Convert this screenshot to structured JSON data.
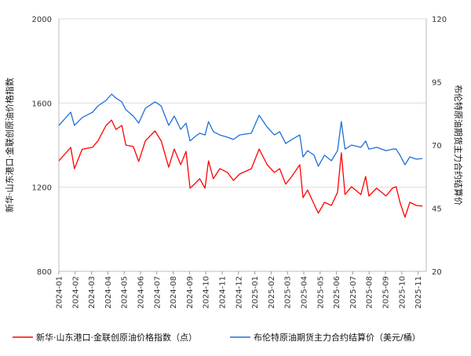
{
  "chart_data": {
    "type": "line",
    "left_axis": {
      "label": "新华·山东港口·金联创原油价格指数",
      "ylim": [
        800,
        2000
      ],
      "ticks": [
        "800",
        "1200",
        "1600",
        "2000"
      ]
    },
    "right_axis": {
      "label": "布伦特原油期货主力合约结算价",
      "ylim": [
        20,
        120
      ],
      "ticks": [
        "20",
        "45",
        "70",
        "95",
        "120"
      ]
    },
    "x_ticks": [
      "2024-01",
      "2024-02",
      "2024-03",
      "2024-04",
      "2024-05",
      "2024-06",
      "2024-07",
      "2024-08",
      "2024-09",
      "2024-10",
      "2024-11",
      "2024-12",
      "2025-01",
      "2025-02",
      "2025-03",
      "2025-04",
      "2025-05",
      "2025-06",
      "2025-07",
      "2025-08",
      "2025-09",
      "2025-10",
      "2025-11"
    ],
    "grid": true,
    "legend_placement": "bottom",
    "x": [
      "2024-01-01",
      "2024-01-23",
      "2024-01-30",
      "2024-02-14",
      "2024-03-03",
      "2024-03-13",
      "2024-03-28",
      "2024-04-08",
      "2024-04-16",
      "2024-04-27",
      "2024-05-04",
      "2024-05-18",
      "2024-05-28",
      "2024-06-10",
      "2024-06-28",
      "2024-07-09",
      "2024-07-23",
      "2024-08-03",
      "2024-08-15",
      "2024-08-25",
      "2024-09-02",
      "2024-09-10",
      "2024-09-20",
      "2024-09-30",
      "2024-10-06",
      "2024-10-15",
      "2024-10-27",
      "2024-11-11",
      "2024-11-22",
      "2024-12-03",
      "2024-12-25",
      "2025-01-09",
      "2025-01-24",
      "2025-02-07",
      "2025-02-17",
      "2025-02-28",
      "2025-03-09",
      "2025-03-24",
      "2025-03-30",
      "2025-04-08",
      "2025-04-20",
      "2025-04-28",
      "2025-05-09",
      "2025-05-22",
      "2025-06-03",
      "2025-06-10",
      "2025-06-17",
      "2025-06-29",
      "2025-07-16",
      "2025-07-25",
      "2025-07-31",
      "2025-08-15",
      "2025-09-02",
      "2025-09-14",
      "2025-09-21",
      "2025-09-28",
      "2025-10-07",
      "2025-10-16",
      "2025-10-28",
      "2025-11-09"
    ],
    "series": [
      {
        "name": "新华·山东港口·金联创原油价格指数（点）",
        "axis": "left",
        "color": "#ff0000",
        "values": [
          1325,
          1389,
          1288,
          1380,
          1390,
          1420,
          1493,
          1519,
          1474,
          1493,
          1400,
          1393,
          1322,
          1420,
          1467,
          1420,
          1295,
          1381,
          1307,
          1370,
          1195,
          1214,
          1240,
          1195,
          1325,
          1240,
          1288,
          1270,
          1232,
          1262,
          1288,
          1381,
          1307,
          1270,
          1288,
          1214,
          1251,
          1307,
          1150,
          1187,
          1120,
          1076,
          1128,
          1113,
          1176,
          1363,
          1165,
          1202,
          1165,
          1251,
          1158,
          1195,
          1158,
          1195,
          1202,
          1128,
          1057,
          1128,
          1113,
          1110
        ]
      },
      {
        "name": "布伦特原油期货主力合约结算价（美元/桶）",
        "axis": "right",
        "color": "#1f6fd8",
        "values": [
          77.8,
          83.0,
          77.8,
          80.9,
          83.0,
          85.5,
          87.7,
          90.2,
          88.6,
          87.1,
          84.0,
          81.5,
          78.7,
          84.6,
          87.1,
          85.5,
          77.8,
          81.5,
          76.2,
          78.7,
          71.6,
          73.1,
          74.7,
          74.0,
          79.3,
          75.3,
          74.0,
          73.1,
          72.2,
          74.0,
          74.7,
          81.8,
          77.1,
          74.0,
          75.3,
          70.6,
          72.2,
          74.0,
          65.3,
          67.8,
          66.0,
          61.6,
          66.0,
          63.8,
          67.8,
          79.3,
          68.4,
          70.0,
          69.1,
          71.6,
          68.4,
          69.1,
          67.8,
          68.4,
          68.4,
          66.0,
          62.2,
          65.3,
          64.4,
          64.7
        ]
      }
    ]
  }
}
